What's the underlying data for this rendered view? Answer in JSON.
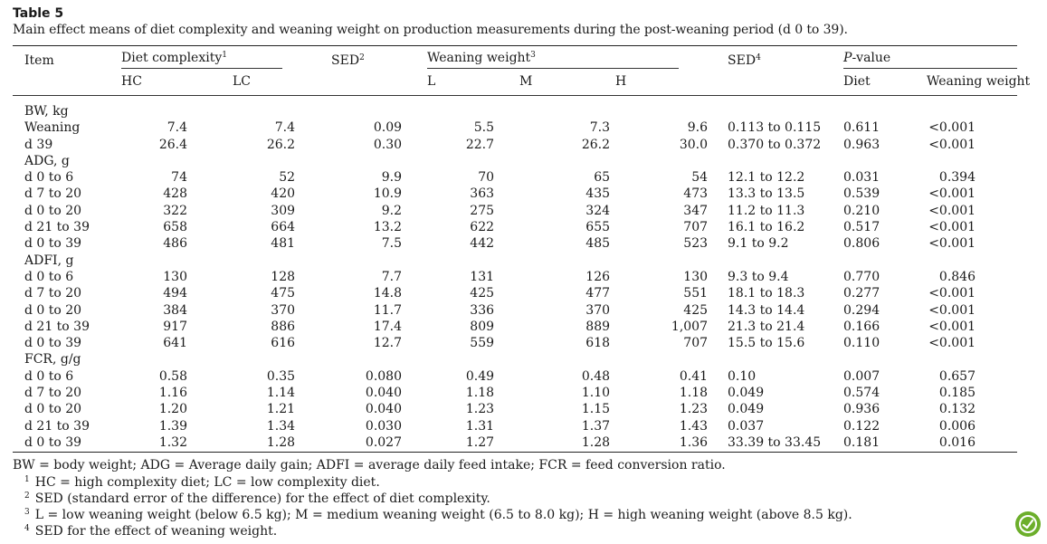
{
  "table_label": "Table 5",
  "caption": "Main effect means of diet complexity and weaning weight on production measurements during the post-weaning period (d 0 to 39).",
  "header": {
    "item": "Item",
    "diet_complexity": "Diet complexity",
    "diet_complexity_sup": "1",
    "sed_diet": "SED",
    "sed_diet_sup": "2",
    "weaning_weight": "Weaning weight",
    "weaning_weight_sup": "3",
    "sed_weaning": "SED",
    "sed_weaning_sup": "4",
    "p_value_italic": "P",
    "p_value_rest": "-value",
    "hc": "HC",
    "lc": "LC",
    "l": "L",
    "m": "M",
    "h": "H",
    "p_diet": "Diet",
    "p_weaning_weight": "Weaning weight"
  },
  "groups": [
    {
      "label": "BW, kg",
      "rows": [
        {
          "item": "Weaning",
          "hc": "7.4",
          "lc": "7.4",
          "sed": "0.09",
          "l": "5.5",
          "m": "7.3",
          "h": "9.6",
          "sed_ww": "0.113 to 0.115",
          "p_diet": "0.611",
          "p_ww": "<0.001"
        },
        {
          "item": "d 39",
          "hc": "26.4",
          "lc": "26.2",
          "sed": "0.30",
          "l": "22.7",
          "m": "26.2",
          "h": "30.0",
          "sed_ww": "0.370 to 0.372",
          "p_diet": "0.963",
          "p_ww": "<0.001"
        }
      ]
    },
    {
      "label": "ADG, g",
      "rows": [
        {
          "item": "d 0 to 6",
          "hc": "74",
          "lc": "52",
          "sed": "9.9",
          "l": "70",
          "m": "65",
          "h": "54",
          "sed_ww": "12.1 to 12.2",
          "p_diet": "0.031",
          "p_ww": "0.394"
        },
        {
          "item": "d 7 to 20",
          "hc": "428",
          "lc": "420",
          "sed": "10.9",
          "l": "363",
          "m": "435",
          "h": "473",
          "sed_ww": "13.3 to 13.5",
          "p_diet": "0.539",
          "p_ww": "<0.001"
        },
        {
          "item": "d 0 to 20",
          "hc": "322",
          "lc": "309",
          "sed": "9.2",
          "l": "275",
          "m": "324",
          "h": "347",
          "sed_ww": "11.2 to 11.3",
          "p_diet": "0.210",
          "p_ww": "<0.001"
        },
        {
          "item": "d 21 to 39",
          "hc": "658",
          "lc": "664",
          "sed": "13.2",
          "l": "622",
          "m": "655",
          "h": "707",
          "sed_ww": "16.1 to 16.2",
          "p_diet": "0.517",
          "p_ww": "<0.001"
        },
        {
          "item": "d 0 to 39",
          "hc": "486",
          "lc": "481",
          "sed": "7.5",
          "l": "442",
          "m": "485",
          "h": "523",
          "sed_ww": "9.1 to 9.2",
          "p_diet": "0.806",
          "p_ww": "<0.001"
        }
      ]
    },
    {
      "label": "ADFI, g",
      "rows": [
        {
          "item": "d 0 to 6",
          "hc": "130",
          "lc": "128",
          "sed": "7.7",
          "l": "131",
          "m": "126",
          "h": "130",
          "sed_ww": "9.3 to 9.4",
          "p_diet": "0.770",
          "p_ww": "0.846"
        },
        {
          "item": "d 7 to 20",
          "hc": "494",
          "lc": "475",
          "sed": "14.8",
          "l": "425",
          "m": "477",
          "h": "551",
          "sed_ww": "18.1 to 18.3",
          "p_diet": "0.277",
          "p_ww": "<0.001"
        },
        {
          "item": "d 0 to 20",
          "hc": "384",
          "lc": "370",
          "sed": "11.7",
          "l": "336",
          "m": "370",
          "h": "425",
          "sed_ww": "14.3 to 14.4",
          "p_diet": "0.294",
          "p_ww": "<0.001"
        },
        {
          "item": "d 21 to 39",
          "hc": "917",
          "lc": "886",
          "sed": "17.4",
          "l": "809",
          "m": "889",
          "h": "1,007",
          "sed_ww": "21.3 to 21.4",
          "p_diet": "0.166",
          "p_ww": "<0.001"
        },
        {
          "item": "d 0 to 39",
          "hc": "641",
          "lc": "616",
          "sed": "12.7",
          "l": "559",
          "m": "618",
          "h": "707",
          "sed_ww": "15.5 to 15.6",
          "p_diet": "0.110",
          "p_ww": "<0.001"
        }
      ]
    },
    {
      "label": "FCR, g/g",
      "rows": [
        {
          "item": "d 0 to 6",
          "hc": "0.58",
          "lc": "0.35",
          "sed": "0.080",
          "l": "0.49",
          "m": "0.48",
          "h": "0.41",
          "sed_ww": "0.10",
          "p_diet": "0.007",
          "p_ww": "0.657"
        },
        {
          "item": "d 7 to 20",
          "hc": "1.16",
          "lc": "1.14",
          "sed": "0.040",
          "l": "1.18",
          "m": "1.10",
          "h": "1.18",
          "sed_ww": "0.049",
          "p_diet": "0.574",
          "p_ww": "0.185"
        },
        {
          "item": "d 0 to 20",
          "hc": "1.20",
          "lc": "1.21",
          "sed": "0.040",
          "l": "1.23",
          "m": "1.15",
          "h": "1.23",
          "sed_ww": "0.049",
          "p_diet": "0.936",
          "p_ww": "0.132"
        },
        {
          "item": "d 21 to 39",
          "hc": "1.39",
          "lc": "1.34",
          "sed": "0.030",
          "l": "1.31",
          "m": "1.37",
          "h": "1.43",
          "sed_ww": "0.037",
          "p_diet": "0.122",
          "p_ww": "0.006"
        },
        {
          "item": "d 0 to 39",
          "hc": "1.32",
          "lc": "1.28",
          "sed": "0.027",
          "l": "1.27",
          "m": "1.28",
          "h": "1.36",
          "sed_ww": "33.39 to 33.45",
          "p_diet": "0.181",
          "p_ww": "0.016"
        }
      ]
    }
  ],
  "footnotes": {
    "abbrev": "BW = body weight; ADG = Average daily gain; ADFI = average daily feed intake; FCR = feed conversion ratio.",
    "notes": [
      {
        "mark": "1",
        "text": "HC = high complexity diet; LC = low complexity diet."
      },
      {
        "mark": "2",
        "text": "SED (standard error of the difference) for the effect of diet complexity."
      },
      {
        "mark": "3",
        "text": "L = low weaning weight (below 6.5 kg); M = medium weaning weight (6.5 to 8.0 kg); H = high weaning weight (above 8.5 kg)."
      },
      {
        "mark": "4",
        "text": "SED for the effect of weaning weight."
      }
    ]
  },
  "icon": "crossmark-badge-icon",
  "colors": {
    "badge": "#6cae2b"
  }
}
